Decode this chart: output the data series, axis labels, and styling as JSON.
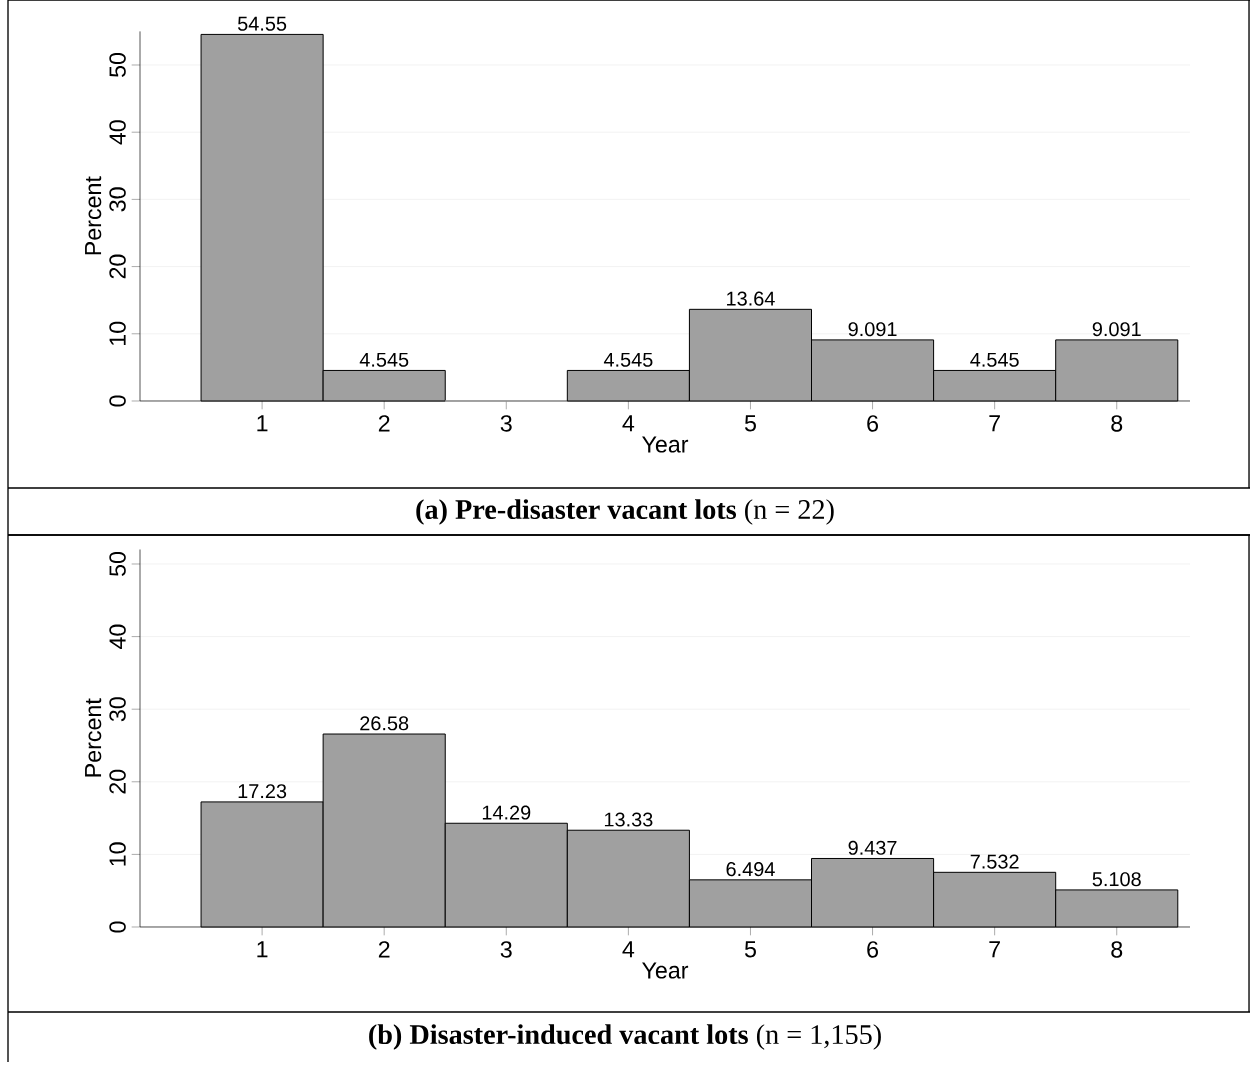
{
  "chart_data": [
    {
      "type": "bar",
      "title": "**(a) Pre-disaster vacant lots** (n = 22)",
      "xlabel": "Year",
      "ylabel": "Percent",
      "x": [
        1,
        2,
        3,
        4,
        5,
        6,
        7,
        8
      ],
      "values": [
        54.55,
        4.545,
        0,
        4.545,
        13.64,
        9.091,
        4.545,
        9.091
      ],
      "value_labels": [
        "54.55",
        "4.545",
        null,
        "4.545",
        "13.64",
        "9.091",
        "4.545",
        "9.091"
      ],
      "color": "#a0a0a0",
      "xlim": [
        0,
        8.6
      ],
      "xticks": [
        1,
        2,
        3,
        4,
        5,
        6,
        7,
        8
      ],
      "ylim": [
        0,
        55
      ],
      "yticks": [
        0,
        10,
        20,
        30,
        40,
        50
      ],
      "grid": "y"
    },
    {
      "type": "bar",
      "title": "**(b) Disaster-induced vacant lots** (n = 1,155)",
      "xlabel": "Year",
      "ylabel": "Percent",
      "x": [
        1,
        2,
        3,
        4,
        5,
        6,
        7,
        8
      ],
      "values": [
        17.23,
        26.58,
        14.29,
        13.33,
        6.494,
        9.437,
        7.532,
        5.108
      ],
      "value_labels": [
        "17.23",
        "26.58",
        "14.29",
        "13.33",
        "6.494",
        "9.437",
        "7.532",
        "5.108"
      ],
      "color": "#a0a0a0",
      "xlim": [
        0,
        8.6
      ],
      "xticks": [
        1,
        2,
        3,
        4,
        5,
        6,
        7,
        8
      ],
      "ylim": [
        0,
        52
      ],
      "yticks": [
        0,
        10,
        20,
        30,
        40,
        50
      ],
      "grid": "y"
    }
  ]
}
